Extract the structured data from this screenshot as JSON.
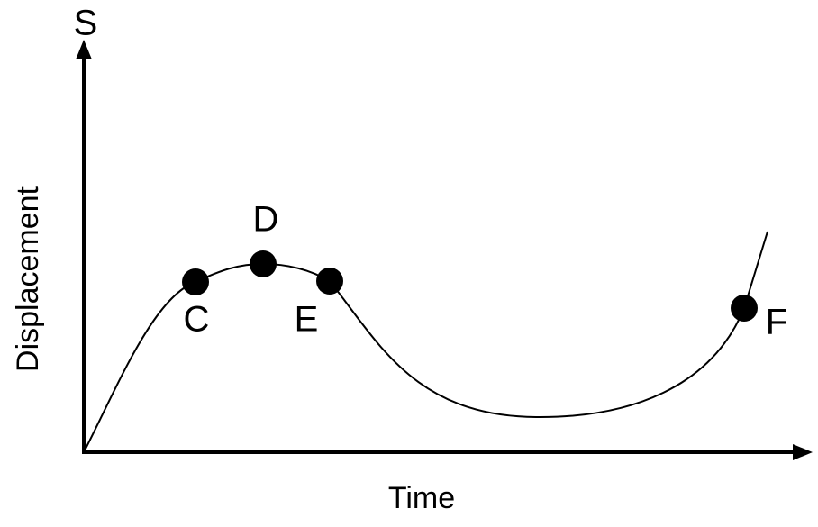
{
  "axes": {
    "y_symbol": "S",
    "y_label": "Displacement",
    "x_label": "Time"
  },
  "points": [
    {
      "label": "C"
    },
    {
      "label": "D"
    },
    {
      "label": "E"
    },
    {
      "label": "F"
    }
  ]
}
